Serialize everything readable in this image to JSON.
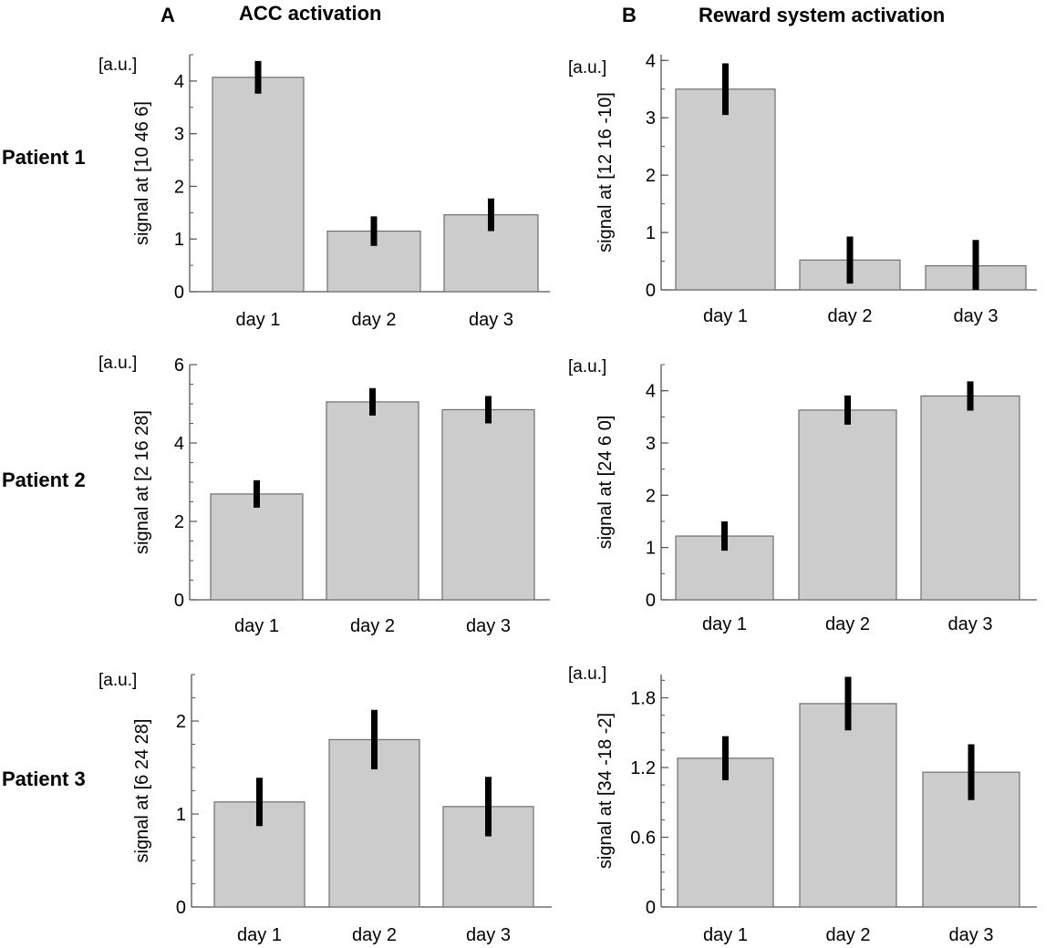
{
  "columns": [
    {
      "label": "A",
      "title": "ACC activation"
    },
    {
      "label": "B",
      "title": "Reward system activation"
    }
  ],
  "rows": [
    "Patient 1",
    "Patient 2",
    "Patient 3"
  ],
  "chart_data": [
    {
      "type": "bar",
      "row": "Patient 1",
      "column": "A",
      "unit": "[a.u.]",
      "ylabel": "signal at [10 46 6]",
      "categories": [
        "day 1",
        "day 2",
        "day 3"
      ],
      "values": [
        4.07,
        1.15,
        1.46
      ],
      "errors": [
        0.31,
        0.28,
        0.31
      ],
      "ylim": [
        0,
        4.5
      ],
      "yticks": [
        0,
        1,
        2,
        3,
        4
      ],
      "minor_step": 0.5
    },
    {
      "type": "bar",
      "row": "Patient 1",
      "column": "B",
      "unit": "[a.u.]",
      "ylabel": "signal at [12 16 -10]",
      "categories": [
        "day 1",
        "day 2",
        "day 3"
      ],
      "values": [
        3.5,
        0.52,
        0.42
      ],
      "errors": [
        0.45,
        0.41,
        0.45
      ],
      "ylim": [
        0,
        4.1
      ],
      "yticks": [
        0,
        1,
        2,
        3,
        4
      ],
      "minor_step": 0.5
    },
    {
      "type": "bar",
      "row": "Patient 2",
      "column": "A",
      "unit": "[a.u.]",
      "ylabel": "signal at [2 16 28]",
      "categories": [
        "day 1",
        "day 2",
        "day 3"
      ],
      "values": [
        2.7,
        5.05,
        4.85
      ],
      "errors": [
        0.35,
        0.35,
        0.35
      ],
      "ylim": [
        0,
        6
      ],
      "yticks": [
        0,
        2,
        4,
        6
      ],
      "minor_step": 0.5
    },
    {
      "type": "bar",
      "row": "Patient 2",
      "column": "B",
      "unit": "[a.u.]",
      "ylabel": "signal at [24 6 0]",
      "categories": [
        "day 1",
        "day 2",
        "day 3"
      ],
      "values": [
        1.22,
        3.63,
        3.9
      ],
      "errors": [
        0.28,
        0.28,
        0.28
      ],
      "ylim": [
        0,
        4.5
      ],
      "yticks": [
        0,
        1,
        2,
        3,
        4
      ],
      "minor_step": 0.5
    },
    {
      "type": "bar",
      "row": "Patient 3",
      "column": "A",
      "unit": "[a.u.]",
      "ylabel": "signal at [6 24 28]",
      "categories": [
        "day 1",
        "day 2",
        "day 3"
      ],
      "values": [
        1.13,
        1.8,
        1.08
      ],
      "errors": [
        0.26,
        0.32,
        0.32
      ],
      "ylim": [
        0,
        2.5
      ],
      "yticks": [
        0,
        1,
        2
      ],
      "minor_step": 0.25
    },
    {
      "type": "bar",
      "row": "Patient 3",
      "column": "B",
      "unit": "[a.u.]",
      "ylabel": "signal at [34 -18 -2]",
      "categories": [
        "day 1",
        "day 2",
        "day 3"
      ],
      "values": [
        1.28,
        1.75,
        1.16
      ],
      "errors": [
        0.19,
        0.23,
        0.24
      ],
      "ylim": [
        0,
        2.0
      ],
      "yticks": [
        0,
        0.6,
        1.2,
        1.8
      ],
      "ytick_labels": [
        "0",
        "0.6",
        "1.2",
        "1.8"
      ],
      "minor_step": 0.15
    }
  ]
}
